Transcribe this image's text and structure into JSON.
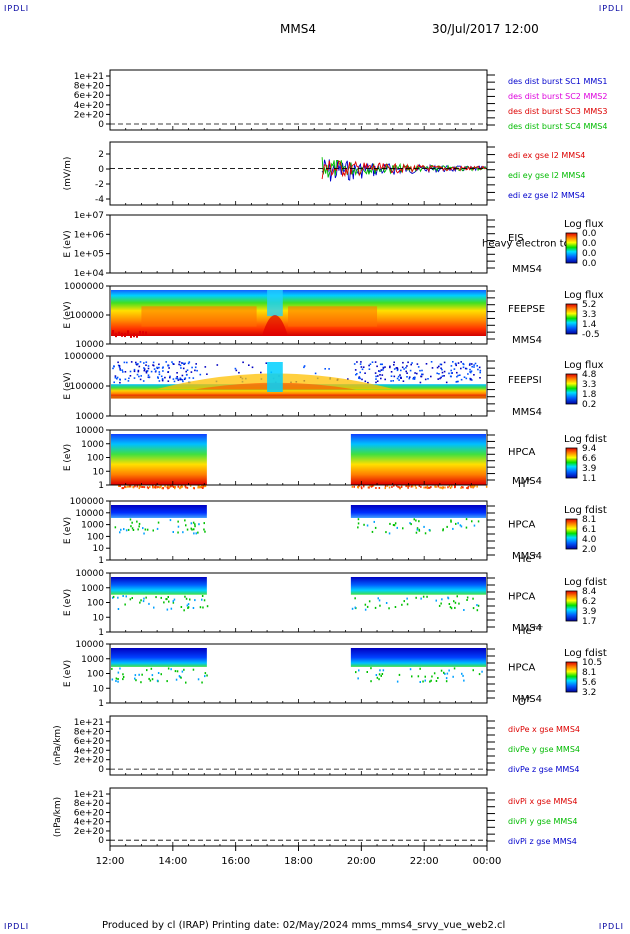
{
  "corners": {
    "tl": "IPDLI",
    "tr": "IPDLI",
    "bl": "IPDLI",
    "br": "IPDLI"
  },
  "header": {
    "spacecraft": "MMS4",
    "datetime": "30/Jul/2017 12:00"
  },
  "footer": {
    "text": "Produced by cl (IRAP)   Printing date: 02/May/2024   mms_mms4_srvy_vue_web2.cl"
  },
  "colors": {
    "panel_frame": "#000000",
    "zero_line": "#000000"
  },
  "chart_data": {
    "type": "multi-panel time series and spectrograms",
    "x_axis": {
      "start": "12:00",
      "end": "00:00",
      "ticks": [
        "12:00",
        "14:00",
        "16:00",
        "18:00",
        "20:00",
        "22:00",
        "00:00"
      ]
    },
    "panels": [
      {
        "id": "des-dist",
        "type": "line",
        "ylabel": "",
        "yticks": [
          "1e+21",
          "8e+20",
          "6e+20",
          "4e+20",
          "2e+20",
          "0"
        ],
        "zero_line": true,
        "legend": [
          {
            "label": "des dist burst SC1 MMS1",
            "color": "#0000cc"
          },
          {
            "label": "des dist burst SC2 MMS2",
            "color": "#dd00dd"
          },
          {
            "label": "des dist burst SC3 MMS3",
            "color": "#dd0000"
          },
          {
            "label": "des dist burst SC4 MMS4",
            "color": "#00bb00"
          }
        ]
      },
      {
        "id": "edi-e",
        "type": "line",
        "ylabel": "(mV/m)",
        "yticks": [
          "2",
          "0",
          "-2",
          "-4"
        ],
        "ylim": [
          -5,
          3.2
        ],
        "zero_line": true,
        "activity_window": [
          "18:45",
          "00:00"
        ],
        "legend": [
          {
            "label": "edi ex gse l2 MMS4",
            "color": "#dd0000"
          },
          {
            "label": "edi ey gse l2 MMS4",
            "color": "#00bb00"
          },
          {
            "label": "edi ez gse l2 MMS4",
            "color": "#0000cc"
          }
        ]
      },
      {
        "id": "eis",
        "type": "heatmap",
        "ylabel": "E (eV)",
        "yticks": [
          "1e+07",
          "1e+06",
          "1e+05",
          "1e+04"
        ],
        "instrument": [
          "EIS",
          "MMS4"
        ],
        "overlay_text": "heavy electron to",
        "colorbar": {
          "title": "Log flux",
          "ticks": [
            "0.0",
            "0.0",
            "0.0",
            "0.0"
          ]
        }
      },
      {
        "id": "feeps-e",
        "type": "heatmap",
        "ylabel": "E (eV)",
        "yticks": [
          "1000000",
          "100000",
          "10000"
        ],
        "instrument": [
          "FEEPSE",
          "MMS4"
        ],
        "colorbar": {
          "title": "Log flux",
          "ticks": [
            "5.2",
            "3.3",
            "1.4",
            "-0.5"
          ]
        }
      },
      {
        "id": "feeps-i",
        "type": "heatmap",
        "ylabel": "E (eV)",
        "yticks": [
          "1000000",
          "100000",
          "10000"
        ],
        "instrument": [
          "FEEPSI",
          "MMS4"
        ],
        "colorbar": {
          "title": "Log flux",
          "ticks": [
            "4.8",
            "3.3",
            "1.8",
            "0.2"
          ]
        }
      },
      {
        "id": "hpca-h",
        "type": "heatmap",
        "ylabel": "E (eV)",
        "yticks": [
          "10000",
          "1000",
          "100",
          "10",
          "1"
        ],
        "instrument": [
          "HPCA",
          "MMS4"
        ],
        "species": {
          "base": "H",
          "sup": "+"
        },
        "data_windows": [
          [
            "12:00",
            "15:05"
          ],
          [
            "19:40",
            "00:00"
          ]
        ],
        "colorbar": {
          "title": "Log fdist",
          "ticks": [
            "9.4",
            "6.6",
            "3.9",
            "1.1"
          ]
        }
      },
      {
        "id": "hpca-he",
        "type": "heatmap",
        "ylabel": "E (eV)",
        "yticks": [
          "100000",
          "10000",
          "1000",
          "100",
          "10",
          "1"
        ],
        "instrument": [
          "HPCA",
          "MMS4"
        ],
        "species": {
          "base": "He",
          "sup": "+"
        },
        "data_windows": [
          [
            "12:00",
            "15:05"
          ],
          [
            "19:40",
            "00:00"
          ]
        ],
        "colorbar": {
          "title": "Log fdist",
          "ticks": [
            "8.1",
            "6.1",
            "4.0",
            "2.0"
          ]
        }
      },
      {
        "id": "hpca-he2",
        "type": "heatmap",
        "ylabel": "E (eV)",
        "yticks": [
          "10000",
          "1000",
          "100",
          "10",
          "1"
        ],
        "instrument": [
          "HPCA",
          "MMS4"
        ],
        "species": {
          "base": "He",
          "sup": "++"
        },
        "data_windows": [
          [
            "12:00",
            "15:05"
          ],
          [
            "19:40",
            "00:00"
          ]
        ],
        "colorbar": {
          "title": "Log fdist",
          "ticks": [
            "8.4",
            "6.2",
            "3.9",
            "1.7"
          ]
        }
      },
      {
        "id": "hpca-o",
        "type": "heatmap",
        "ylabel": "E (eV)",
        "yticks": [
          "10000",
          "1000",
          "100",
          "10",
          "1"
        ],
        "instrument": [
          "HPCA",
          "MMS4"
        ],
        "species": {
          "base": "O",
          "sup": "+"
        },
        "data_windows": [
          [
            "12:00",
            "15:05"
          ],
          [
            "19:40",
            "00:00"
          ]
        ],
        "colorbar": {
          "title": "Log fdist",
          "ticks": [
            "10.5",
            "8.1",
            "5.6",
            "3.2"
          ]
        }
      },
      {
        "id": "divpe",
        "type": "line",
        "ylabel": "(nPa/km)",
        "yticks": [
          "1e+21",
          "8e+20",
          "6e+20",
          "4e+20",
          "2e+20",
          "0"
        ],
        "zero_line": true,
        "legend": [
          {
            "label": "divPe x gse MMS4",
            "color": "#dd0000"
          },
          {
            "label": "divPe y gse MMS4",
            "color": "#00bb00"
          },
          {
            "label": "divPe z gse MMS4",
            "color": "#0000cc"
          }
        ]
      },
      {
        "id": "divpi",
        "type": "line",
        "ylabel": "(nPa/km)",
        "yticks": [
          "1e+21",
          "8e+20",
          "6e+20",
          "4e+20",
          "2e+20",
          "0"
        ],
        "zero_line": true,
        "legend": [
          {
            "label": "divPi x gse MMS4",
            "color": "#dd0000"
          },
          {
            "label": "divPi y gse MMS4",
            "color": "#00bb00"
          },
          {
            "label": "divPi z gse MMS4",
            "color": "#0000cc"
          }
        ]
      }
    ]
  }
}
